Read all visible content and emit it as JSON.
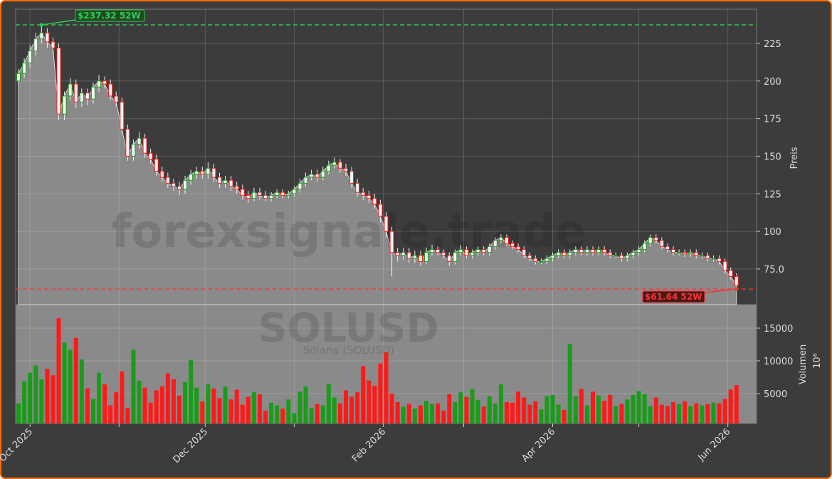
{
  "chart_data": {
    "type": "candlestick",
    "watermark": "forexsignale.trade",
    "symbol": "SOLUSD",
    "symbol_name": "Solana (SOLUSD)",
    "ylabel": "Preis",
    "y2label": "Volumen",
    "y2unit": "10⁶",
    "xlim": [
      -0.5,
      128.5
    ],
    "xticks": [
      {
        "value": 2,
        "label": "Oct 2025"
      },
      {
        "value": 17.5,
        "label": null
      },
      {
        "value": 32.5,
        "label": "Dec 2025"
      },
      {
        "value": 48,
        "label": null
      },
      {
        "value": 63.5,
        "label": "Feb 2026"
      },
      {
        "value": 77.5,
        "label": null
      },
      {
        "value": 93,
        "label": "Apr 2026"
      },
      {
        "value": 108,
        "label": null
      },
      {
        "value": 123.5,
        "label": "Jun 2026"
      }
    ],
    "ylim": [
      51.3,
      247.7
    ],
    "yticks": [
      {
        "value": 75,
        "label": "75.0"
      },
      100,
      125,
      150,
      175,
      200,
      225
    ],
    "y2lim": [
      435,
      18587
    ],
    "y2ticks": [
      5000,
      10000,
      15000
    ],
    "grid": true,
    "up_color": "#1a9c1a",
    "down_color": "#ff1a1a",
    "annotations": [
      {
        "label": "$237.32 52W",
        "value": 237.32,
        "color": "#2ecc55"
      },
      {
        "label": "$61.64 52W",
        "value": 61.64,
        "color": "#ff3333"
      }
    ],
    "open": [
      200,
      205,
      212,
      220,
      228,
      232,
      226,
      222,
      178,
      190,
      198,
      186,
      192,
      188,
      196,
      200,
      198,
      190,
      186,
      168,
      150,
      158,
      162,
      152,
      148,
      140,
      136,
      132,
      130,
      128,
      134,
      138,
      140,
      138,
      142,
      136,
      132,
      134,
      130,
      128,
      124,
      122,
      126,
      124,
      122,
      124,
      126,
      124,
      125,
      128,
      132,
      136,
      138,
      136,
      140,
      144,
      146,
      142,
      140,
      132,
      126,
      124,
      122,
      118,
      110,
      100,
      86,
      84,
      86,
      82,
      84,
      80,
      86,
      88,
      86,
      84,
      80,
      86,
      88,
      84,
      86,
      88,
      86,
      90,
      94,
      96,
      92,
      90,
      88,
      84,
      82,
      80,
      80,
      82,
      84,
      86,
      84,
      86,
      88,
      86,
      88,
      86,
      88,
      86,
      84,
      84,
      82,
      84,
      86,
      88,
      92,
      96,
      94,
      90,
      88,
      86,
      86,
      85,
      86,
      84,
      84,
      82,
      82,
      80,
      74,
      70
    ],
    "high": [
      208,
      215,
      224,
      232,
      237.32,
      235,
      229,
      225,
      193,
      202,
      201,
      195,
      195,
      199,
      204,
      203,
      201,
      193,
      189,
      171,
      161,
      166,
      165,
      155,
      151,
      143,
      139,
      135,
      133,
      137,
      141,
      143,
      143,
      146,
      145,
      139,
      137,
      137,
      133,
      131,
      127,
      129,
      129,
      127,
      126,
      128,
      128,
      127,
      130,
      135,
      139,
      141,
      141,
      143,
      147,
      149,
      148,
      145,
      143,
      135,
      129,
      127,
      125,
      121,
      113,
      103,
      89,
      89,
      89,
      87,
      87,
      89,
      91,
      90,
      88,
      86,
      88,
      91,
      90,
      88,
      90,
      90,
      92,
      96,
      98,
      98,
      94,
      92,
      90,
      86,
      84,
      82,
      84,
      86,
      88,
      88,
      88,
      90,
      90,
      90,
      90,
      90,
      90,
      88,
      86,
      86,
      86,
      88,
      90,
      94,
      98,
      98,
      96,
      92,
      90,
      88,
      88,
      88,
      88,
      86,
      86,
      84,
      84,
      82,
      76,
      72
    ],
    "low": [
      197,
      202,
      209,
      217,
      225,
      222,
      218,
      174,
      174,
      187,
      182,
      183,
      184,
      185,
      193,
      195,
      187,
      183,
      165,
      147,
      147,
      155,
      149,
      145,
      137,
      133,
      129,
      127,
      124,
      125,
      131,
      135,
      135,
      135,
      133,
      129,
      129,
      127,
      125,
      121,
      119,
      120,
      121,
      120,
      120,
      122,
      122,
      122,
      123,
      126,
      130,
      134,
      133,
      134,
      138,
      142,
      139,
      137,
      129,
      123,
      121,
      119,
      115,
      106,
      96,
      70,
      80,
      81,
      79,
      79,
      77,
      78,
      84,
      84,
      82,
      77,
      78,
      84,
      82,
      82,
      84,
      84,
      84,
      88,
      92,
      90,
      88,
      86,
      82,
      80,
      78,
      78,
      78,
      80,
      82,
      82,
      82,
      84,
      84,
      84,
      84,
      84,
      84,
      82,
      82,
      80,
      80,
      82,
      84,
      86,
      90,
      92,
      88,
      86,
      84,
      84,
      83,
      83,
      82,
      82,
      80,
      80,
      78,
      72,
      68,
      61.64
    ],
    "close": [
      205,
      212,
      220,
      228,
      232,
      226,
      222,
      178,
      190,
      198,
      186,
      192,
      188,
      196,
      200,
      198,
      190,
      186,
      168,
      150,
      158,
      162,
      152,
      148,
      140,
      136,
      132,
      130,
      128,
      134,
      138,
      140,
      138,
      142,
      136,
      132,
      134,
      130,
      128,
      124,
      122,
      126,
      124,
      122,
      124,
      126,
      124,
      125,
      128,
      132,
      136,
      138,
      136,
      140,
      144,
      146,
      142,
      140,
      132,
      126,
      124,
      122,
      118,
      110,
      100,
      86,
      84,
      86,
      82,
      84,
      80,
      86,
      88,
      86,
      84,
      80,
      86,
      88,
      84,
      86,
      88,
      86,
      90,
      94,
      96,
      92,
      90,
      88,
      84,
      82,
      80,
      80,
      82,
      84,
      86,
      84,
      86,
      88,
      86,
      88,
      86,
      88,
      86,
      84,
      84,
      82,
      84,
      86,
      88,
      92,
      96,
      94,
      90,
      88,
      86,
      86,
      85,
      86,
      84,
      84,
      82,
      82,
      80,
      74,
      70,
      64
    ],
    "volume": [
      3500,
      6900,
      8200,
      9300,
      7200,
      8800,
      7800,
      16500,
      12800,
      11700,
      13500,
      10200,
      5800,
      4200,
      8200,
      6400,
      3200,
      5200,
      8400,
      2800,
      11700,
      7000,
      5900,
      3600,
      5500,
      6100,
      8100,
      7200,
      4700,
      6800,
      10100,
      5900,
      3800,
      6400,
      5800,
      4300,
      6100,
      4100,
      5600,
      3300,
      4500,
      5200,
      4900,
      2400,
      3600,
      3200,
      2700,
      4100,
      2000,
      5300,
      6100,
      2800,
      3400,
      3200,
      6500,
      4400,
      3500,
      5500,
      4500,
      5200,
      9200,
      7000,
      6200,
      9600,
      11300,
      5000,
      3700,
      3000,
      3400,
      2700,
      3200,
      3900,
      3400,
      3500,
      2400,
      4900,
      3700,
      5200,
      4500,
      5700,
      4000,
      3000,
      4600,
      3500,
      6400,
      3700,
      3600,
      5300,
      4400,
      3300,
      3800,
      2600,
      4600,
      4800,
      3300,
      2500,
      12600,
      4600,
      5700,
      3200,
      5300,
      4700,
      3900,
      4800,
      3100,
      3400,
      4100,
      4800,
      5400,
      4900,
      3100,
      4400,
      3300,
      3100,
      3700,
      3400,
      3800,
      3100,
      3500,
      3200,
      3400,
      3600,
      3500,
      4200,
      5600,
      6300
    ]
  }
}
